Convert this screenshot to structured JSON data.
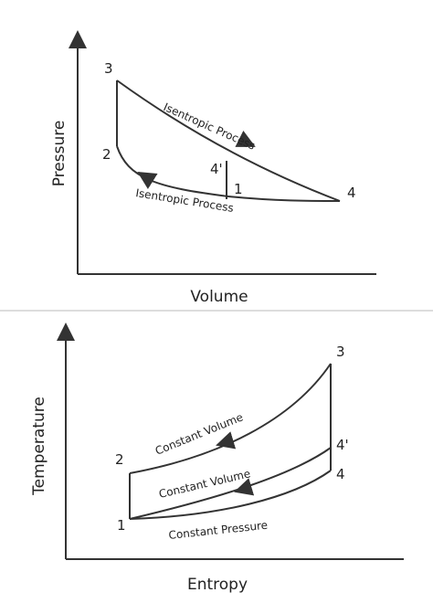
{
  "diagrams": [
    {
      "y_axis_label": "Pressure",
      "x_axis_label": "Volume",
      "points": [
        "3",
        "2",
        "4'",
        "1",
        "4"
      ],
      "processes": [
        "Isentropic Process",
        "Isentropic Process"
      ]
    },
    {
      "y_axis_label": "Temperature",
      "x_axis_label": "Entropy",
      "points": [
        "3",
        "4'",
        "4",
        "2",
        "1"
      ],
      "processes": [
        "Constant Volume",
        "Constant Volume",
        "Constant Pressure"
      ]
    }
  ]
}
